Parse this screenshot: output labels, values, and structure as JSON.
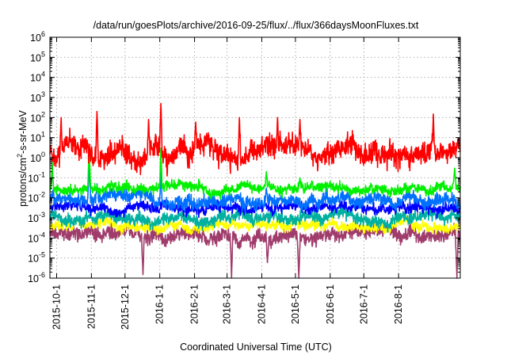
{
  "chart_data": {
    "type": "line",
    "title": "/data/run/goesPlots/archive/2016-09-25/flux/../flux/366daysMoonFluxes.txt",
    "xlabel": "Coordinated Universal Time (UTC)",
    "ylabel": "protons/cm²-s-sr-MeV",
    "ylabel_parts": {
      "pre": "protons/cm",
      "sup": "2",
      "post": "-s-sr-MeV"
    },
    "y_scale": "log",
    "ylim": [
      1e-06,
      1000000.0
    ],
    "y_ticks": [
      {
        "base": "10",
        "exp": "-6"
      },
      {
        "base": "10",
        "exp": "-5"
      },
      {
        "base": "10",
        "exp": "-4"
      },
      {
        "base": "10",
        "exp": "-3"
      },
      {
        "base": "10",
        "exp": "-2"
      },
      {
        "base": "10",
        "exp": "-1"
      },
      {
        "base": "10",
        "exp": "0"
      },
      {
        "base": "10",
        "exp": "1"
      },
      {
        "base": "10",
        "exp": "2"
      },
      {
        "base": "10",
        "exp": "3"
      },
      {
        "base": "10",
        "exp": "4"
      },
      {
        "base": "10",
        "exp": "5"
      },
      {
        "base": "10",
        "exp": "6"
      }
    ],
    "xlim": [
      "2015-09-25",
      "2016-09-25"
    ],
    "x_ticks": [
      "2015-10-1",
      "2015-11-1",
      "2015-12-1",
      "2016-1-1",
      "2016-2-1",
      "2016-3-1",
      "2016-4-1",
      "2016-5-1",
      "2016-6-1",
      "2016-7-1",
      "2016-8-1"
    ],
    "grid": true,
    "legend": "none",
    "series": [
      {
        "color": "#a03c6c",
        "level": 0.00015,
        "spread": 0.28,
        "spikes": [
          [
            "2015-11-01",
            0.0004
          ],
          [
            "2015-12-17",
            1.5e-06
          ],
          [
            "2016-03-05",
            1e-06
          ],
          [
            "2016-04-06",
            6e-06
          ],
          [
            "2016-05-04",
            1e-06
          ],
          [
            "2016-09-22",
            1e-06
          ]
        ]
      },
      {
        "color": "#ffff00",
        "level": 0.0004,
        "spread": 0.2,
        "spikes": []
      },
      {
        "color": "#00b0a0",
        "level": 0.0012,
        "spread": 0.25,
        "spikes": []
      },
      {
        "color": "#0000ff",
        "level": 0.003,
        "spread": 0.2,
        "spikes": []
      },
      {
        "color": "#0070ff",
        "level": 0.008,
        "spread": 0.25,
        "spikes": [
          [
            "2015-10-30",
            0.5
          ],
          [
            "2015-11-06",
            0.05
          ],
          [
            "2016-01-02",
            0.3
          ],
          [
            "2016-04-05",
            0.03
          ]
        ]
      },
      {
        "color": "#00f000",
        "level": 0.025,
        "spread": 0.2,
        "spikes": [
          [
            "2015-09-27",
            0.6
          ],
          [
            "2015-10-30",
            3
          ],
          [
            "2016-01-02",
            3
          ],
          [
            "2016-04-05",
            0.2
          ],
          [
            "2016-05-05",
            0.1
          ],
          [
            "2016-09-20",
            0.3
          ]
        ]
      },
      {
        "color": "#ff0000",
        "level": 2,
        "spread": 0.45,
        "spikes": [
          [
            "2015-10-05",
            100
          ],
          [
            "2015-11-06",
            200
          ],
          [
            "2015-12-22",
            80
          ],
          [
            "2016-01-02",
            500
          ],
          [
            "2016-02-02",
            60
          ],
          [
            "2016-03-12",
            100
          ],
          [
            "2016-04-15",
            100
          ],
          [
            "2016-05-05",
            80
          ],
          [
            "2016-09-01",
            150
          ]
        ]
      }
    ]
  }
}
